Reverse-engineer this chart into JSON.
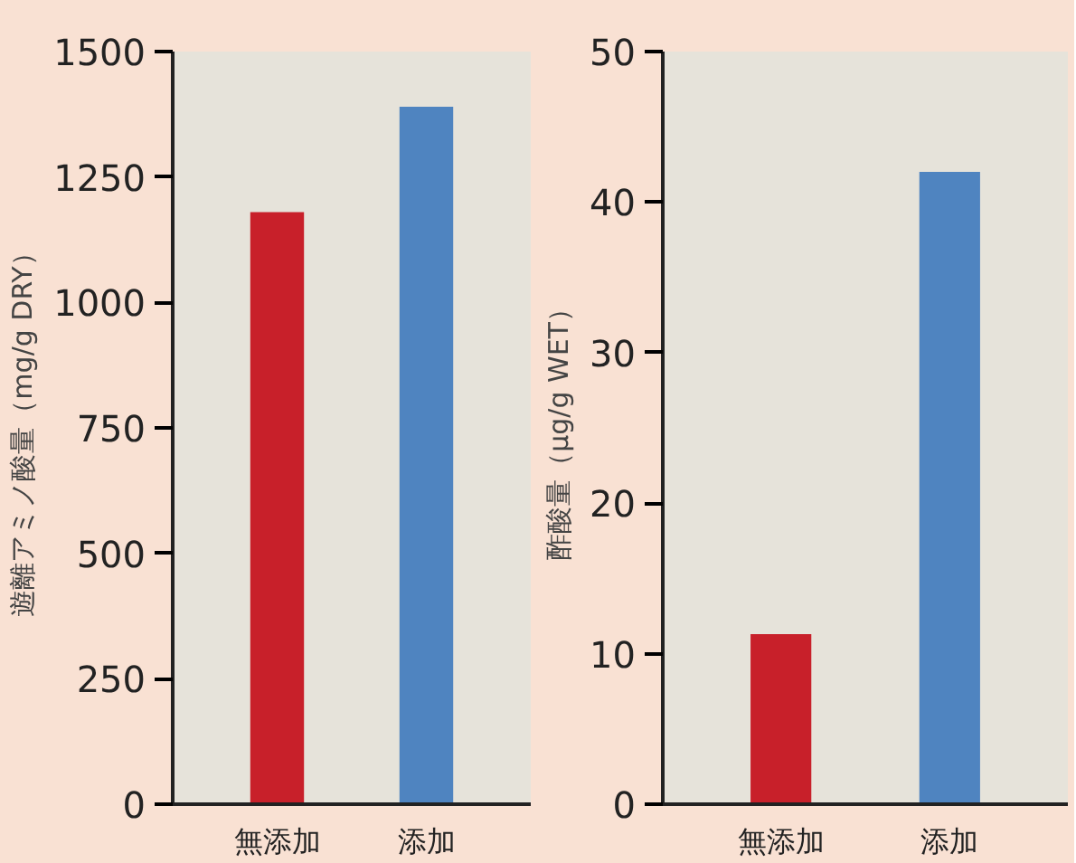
{
  "chart_data": [
    {
      "type": "bar",
      "ylabel": "遊離アミノ酸量（mg/g DRY）",
      "categories": [
        "無添加",
        "添加"
      ],
      "values": [
        1180,
        1390
      ],
      "colors": [
        "#c8202a",
        "#4f84c0"
      ],
      "ylim": [
        0,
        1500
      ],
      "yticks": [
        0,
        250,
        500,
        750,
        1000,
        1250,
        1500
      ],
      "grid": false
    },
    {
      "type": "bar",
      "ylabel": "酢酸量（μg/g WET）",
      "categories": [
        "無添加",
        "添加"
      ],
      "values": [
        11.3,
        42
      ],
      "colors": [
        "#c8202a",
        "#4f84c0"
      ],
      "ylim": [
        0,
        50
      ],
      "yticks": [
        0,
        10,
        20,
        30,
        40,
        50
      ],
      "grid": false
    }
  ]
}
